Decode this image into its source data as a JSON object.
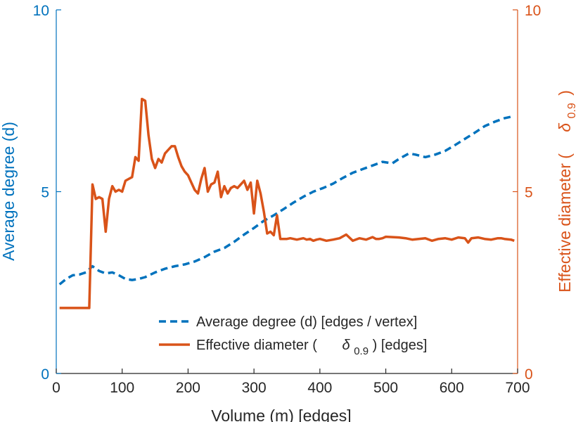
{
  "chart_data": {
    "type": "line",
    "title": "",
    "xlabel": "Volume (m) [edges]",
    "ylabel_left": "Average degree (d)",
    "ylabel_right_main": "Effective diameter (",
    "ylabel_right_sym": "δ",
    "ylabel_right_sub": "0.9",
    "ylabel_right_end": ")",
    "xlim": [
      0,
      700
    ],
    "ylim_left": [
      0,
      10
    ],
    "ylim_right": [
      0,
      10
    ],
    "x_ticks": [
      "0",
      "100",
      "200",
      "300",
      "400",
      "500",
      "600",
      "700"
    ],
    "y_left_ticks": [
      "0",
      "5",
      "10"
    ],
    "y_right_ticks": [
      "0",
      "5",
      "10"
    ],
    "colors": {
      "left": "#0072BD",
      "right": "#D95319",
      "axis_dark": "#262626"
    },
    "legend": {
      "position": "bottom-right",
      "entries": [
        {
          "name": "Average degree (d) [edges / vertex]",
          "style": "dashed"
        },
        {
          "pre": "Effective diameter (",
          "sym": "δ",
          "sub": "0.9",
          "post": ") [edges]",
          "style": "solid"
        }
      ]
    },
    "series": [
      {
        "name": "Average degree (d) [edges / vertex]",
        "axis": "left",
        "style": "dashed",
        "x": [
          5,
          15,
          25,
          35,
          45,
          55,
          65,
          75,
          85,
          95,
          105,
          115,
          125,
          135,
          150,
          165,
          180,
          195,
          210,
          225,
          240,
          255,
          270,
          285,
          300,
          315,
          330,
          345,
          360,
          375,
          390,
          405,
          420,
          435,
          450,
          465,
          480,
          495,
          510,
          520,
          535,
          545,
          560,
          575,
          590,
          605,
          620,
          635,
          650,
          665,
          680,
          695
        ],
        "values": [
          2.45,
          2.6,
          2.7,
          2.72,
          2.78,
          2.95,
          2.82,
          2.75,
          2.78,
          2.7,
          2.6,
          2.57,
          2.6,
          2.65,
          2.78,
          2.88,
          2.95,
          3.0,
          3.08,
          3.2,
          3.35,
          3.45,
          3.62,
          3.82,
          4.0,
          4.2,
          4.35,
          4.52,
          4.7,
          4.86,
          5.0,
          5.1,
          5.22,
          5.38,
          5.52,
          5.62,
          5.72,
          5.82,
          5.78,
          5.9,
          6.05,
          6.02,
          5.95,
          6.02,
          6.12,
          6.28,
          6.45,
          6.62,
          6.8,
          6.92,
          7.02,
          7.08
        ]
      },
      {
        "name": "Effective diameter (δ0.9) [edges]",
        "axis": "right",
        "style": "solid",
        "x": [
          5,
          10,
          20,
          30,
          40,
          50,
          55,
          60,
          65,
          70,
          75,
          80,
          85,
          90,
          95,
          100,
          105,
          110,
          115,
          120,
          125,
          130,
          135,
          140,
          145,
          150,
          155,
          160,
          165,
          170,
          175,
          180,
          185,
          190,
          195,
          200,
          205,
          210,
          215,
          220,
          225,
          230,
          235,
          240,
          245,
          250,
          255,
          260,
          265,
          270,
          275,
          280,
          285,
          290,
          295,
          300,
          305,
          310,
          315,
          320,
          325,
          330,
          335,
          340,
          345,
          350,
          355,
          360,
          365,
          370,
          375,
          380,
          385,
          390,
          395,
          400,
          410,
          420,
          430,
          440,
          450,
          460,
          470,
          480,
          485,
          490,
          495,
          500,
          510,
          520,
          530,
          535,
          540,
          550,
          560,
          570,
          580,
          590,
          600,
          610,
          620,
          625,
          630,
          640,
          650,
          660,
          670,
          675,
          680,
          690,
          695
        ],
        "values": [
          1.8,
          1.8,
          1.8,
          1.8,
          1.8,
          1.8,
          5.2,
          4.8,
          4.85,
          4.8,
          3.9,
          4.8,
          5.15,
          5.0,
          5.05,
          5.0,
          5.3,
          5.35,
          5.4,
          5.95,
          5.85,
          7.55,
          7.5,
          6.55,
          5.9,
          5.65,
          5.9,
          5.8,
          6.05,
          6.15,
          6.25,
          6.25,
          5.95,
          5.7,
          5.55,
          5.45,
          5.25,
          5.05,
          4.95,
          5.35,
          5.65,
          5.0,
          5.2,
          5.25,
          5.55,
          4.85,
          5.15,
          4.95,
          5.1,
          5.15,
          5.1,
          5.2,
          5.3,
          5.05,
          5.25,
          4.4,
          5.3,
          4.95,
          4.45,
          3.85,
          3.9,
          3.8,
          4.35,
          3.7,
          3.7,
          3.7,
          3.72,
          3.7,
          3.68,
          3.7,
          3.72,
          3.68,
          3.7,
          3.65,
          3.68,
          3.7,
          3.65,
          3.68,
          3.72,
          3.82,
          3.65,
          3.72,
          3.68,
          3.75,
          3.7,
          3.7,
          3.72,
          3.76,
          3.75,
          3.74,
          3.72,
          3.7,
          3.68,
          3.7,
          3.72,
          3.65,
          3.7,
          3.72,
          3.68,
          3.74,
          3.72,
          3.6,
          3.72,
          3.74,
          3.7,
          3.68,
          3.72,
          3.72,
          3.7,
          3.68,
          3.65
        ]
      }
    ]
  }
}
